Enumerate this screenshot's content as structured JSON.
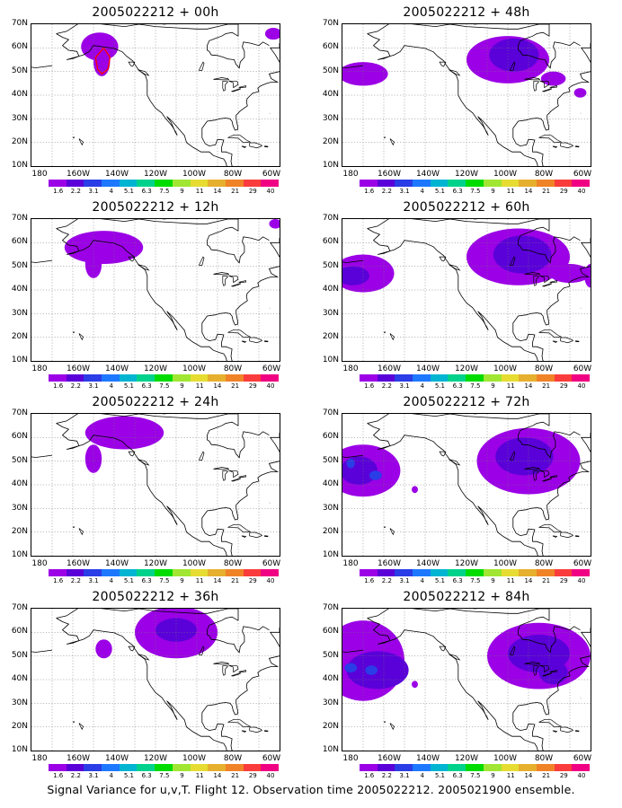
{
  "caption": "Signal Variance for u,v,T. Flight 12. Observation time 2005022212. 2005021900 ensemble.",
  "lat_labels": [
    "70N",
    "60N",
    "50N",
    "40N",
    "30N",
    "20N",
    "10N"
  ],
  "lon_labels": [
    "180",
    "160W",
    "140W",
    "120W",
    "100W",
    "80W",
    "60W"
  ],
  "colorbar_labels": [
    "1.6",
    "2.2",
    "3.1",
    "4",
    "5.1",
    "6.3",
    "7.5",
    "9",
    "11",
    "14",
    "21",
    "29",
    "40"
  ],
  "colorbar_colors": [
    "#9b00e6",
    "#5a00d9",
    "#2a3de6",
    "#1e78ff",
    "#00b4d2",
    "#00d28c",
    "#00dc00",
    "#a0e632",
    "#e6dc32",
    "#e6af2d",
    "#f08228",
    "#fa3c3c",
    "#f00082"
  ],
  "panels": [
    {
      "title": "2005022212 + 00h",
      "forecast_hour": 0
    },
    {
      "title": "2005022212 + 48h",
      "forecast_hour": 48
    },
    {
      "title": "2005022212 + 12h",
      "forecast_hour": 12
    },
    {
      "title": "2005022212 + 60h",
      "forecast_hour": 60
    },
    {
      "title": "2005022212 + 24h",
      "forecast_hour": 24
    },
    {
      "title": "2005022212 + 72h",
      "forecast_hour": 72
    },
    {
      "title": "2005022212 + 36h",
      "forecast_hour": 36
    },
    {
      "title": "2005022212 + 84h",
      "forecast_hour": 84
    }
  ]
}
